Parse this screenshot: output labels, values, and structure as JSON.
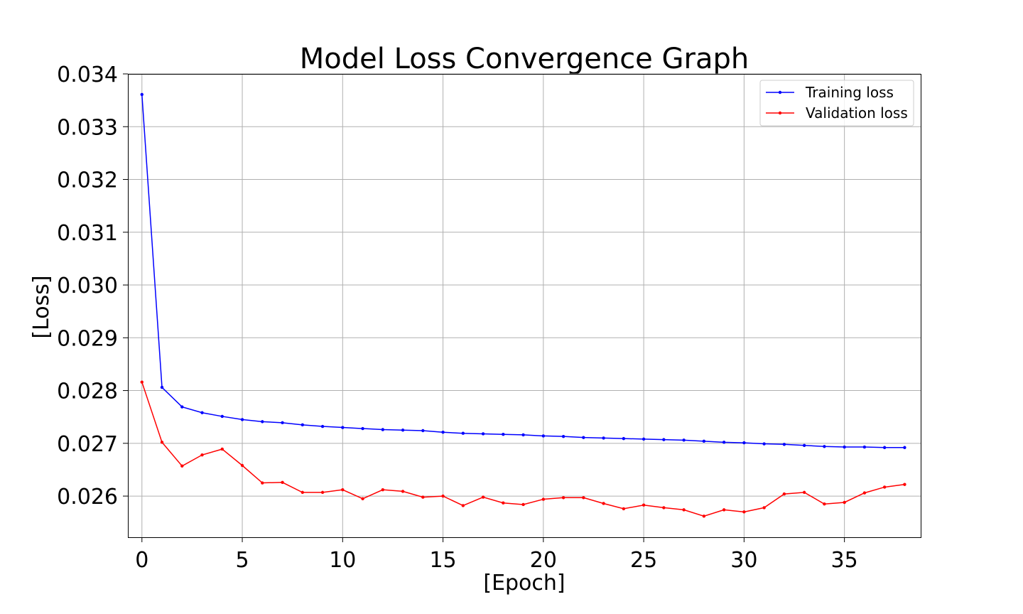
{
  "chart_data": {
    "type": "line",
    "title": "Model Loss Convergence Graph",
    "xlabel": "[Epoch]",
    "ylabel": "[Loss]",
    "xlim": [
      -0.7,
      38.8
    ],
    "ylim": [
      0.02522,
      0.034
    ],
    "x_ticks": [
      0,
      5,
      10,
      15,
      20,
      25,
      30,
      35
    ],
    "y_ticks": [
      0.026,
      0.027,
      0.028,
      0.029,
      0.03,
      0.031,
      0.032,
      0.033,
      0.034
    ],
    "x_tick_labels": [
      "0",
      "5",
      "10",
      "15",
      "20",
      "25",
      "30",
      "35"
    ],
    "y_tick_labels": [
      "0.026",
      "0.027",
      "0.028",
      "0.029",
      "0.030",
      "0.031",
      "0.032",
      "0.033",
      "0.034"
    ],
    "grid": true,
    "legend_position": "top-right",
    "x": [
      0,
      1,
      2,
      3,
      4,
      5,
      6,
      7,
      8,
      9,
      10,
      11,
      12,
      13,
      14,
      15,
      16,
      17,
      18,
      19,
      20,
      21,
      22,
      23,
      24,
      25,
      26,
      27,
      28,
      29,
      30,
      31,
      32,
      33,
      34,
      35,
      36,
      37,
      38
    ],
    "series": [
      {
        "name": "Training loss",
        "color": "#0000ff",
        "values": [
          0.03361,
          0.02806,
          0.02769,
          0.02758,
          0.02751,
          0.02745,
          0.02741,
          0.02739,
          0.02735,
          0.02732,
          0.0273,
          0.02728,
          0.02726,
          0.02725,
          0.02724,
          0.02721,
          0.02719,
          0.02718,
          0.02717,
          0.02716,
          0.02714,
          0.02713,
          0.02711,
          0.0271,
          0.02709,
          0.02708,
          0.02707,
          0.02706,
          0.02704,
          0.02702,
          0.02701,
          0.02699,
          0.02698,
          0.02696,
          0.02694,
          0.02693,
          0.02693,
          0.02692,
          0.02692
        ]
      },
      {
        "name": "Validation loss",
        "color": "#ff0000",
        "values": [
          0.02816,
          0.02702,
          0.02657,
          0.02678,
          0.02689,
          0.02658,
          0.02625,
          0.02626,
          0.02607,
          0.02607,
          0.02612,
          0.02595,
          0.02612,
          0.02609,
          0.02598,
          0.026,
          0.02582,
          0.02598,
          0.02587,
          0.02584,
          0.02594,
          0.02597,
          0.02597,
          0.02586,
          0.02576,
          0.02583,
          0.02578,
          0.02574,
          0.02562,
          0.02574,
          0.0257,
          0.02578,
          0.02604,
          0.02607,
          0.02585,
          0.02588,
          0.02606,
          0.02617,
          0.02622
        ]
      }
    ]
  }
}
